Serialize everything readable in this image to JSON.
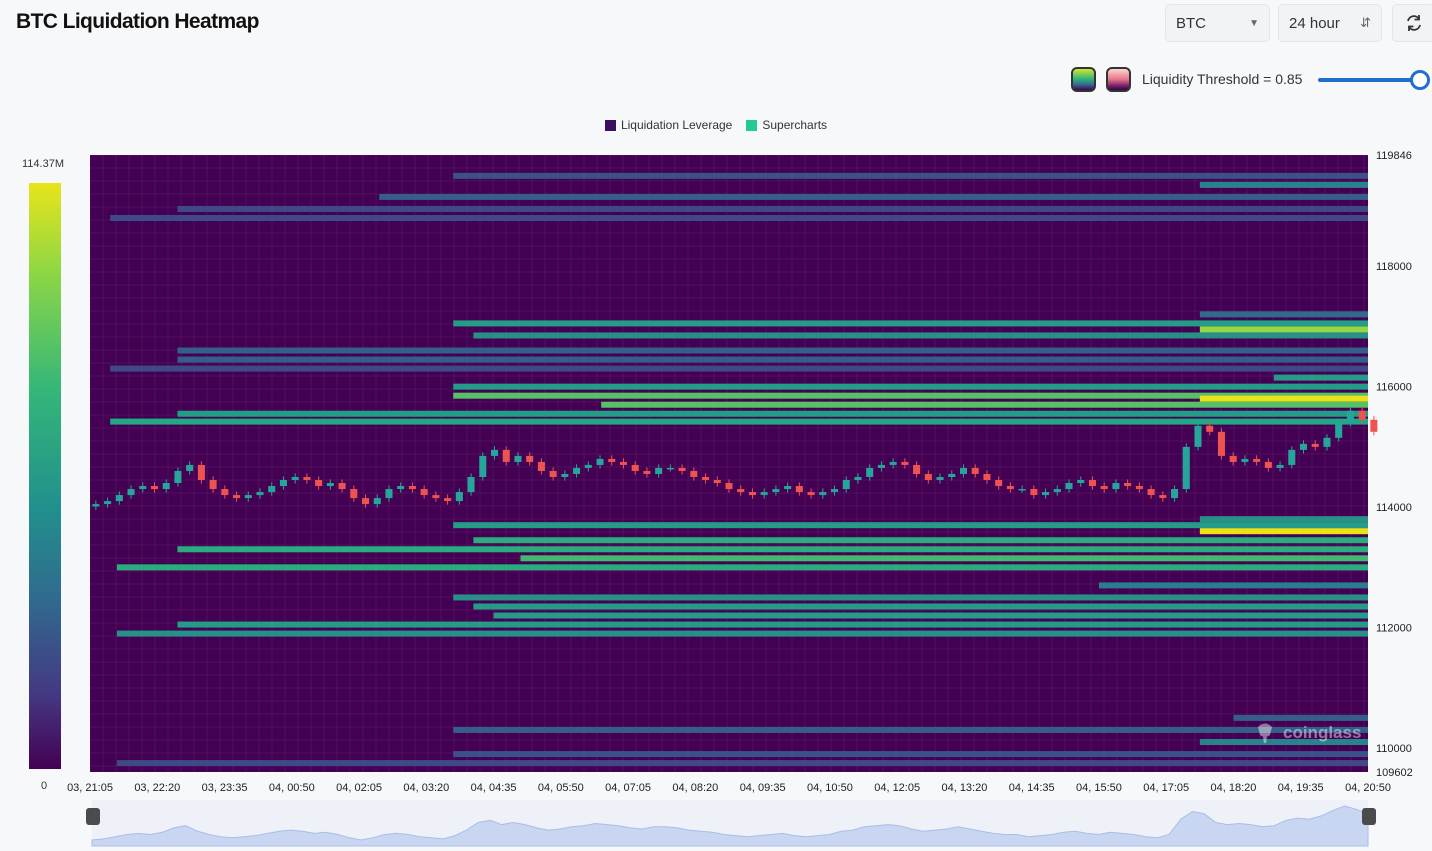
{
  "header": {
    "title": "BTC Liquidation Heatmap",
    "coin_select": "BTC",
    "range_select": "24 hour",
    "threshold_label": "Liquidity Threshold = 0.85",
    "threshold_value": 0.85
  },
  "icons": {
    "coin_chevron": "dropdown-arrow-icon",
    "range_chevron": "up-down-arrows-icon",
    "refresh": "refresh-icon",
    "watermark": "coinglass-logo-icon"
  },
  "colors": {
    "background": "#440154",
    "up_candle": "#26a69a",
    "down_candle": "#ef5350",
    "palette_high": "#e8e419",
    "accent": "#1f6fd1"
  },
  "colorbar": {
    "max_label": "114.37M",
    "min_label": "0"
  },
  "watermark": "coinglass",
  "chart_data": {
    "type": "heatmap",
    "title": "BTC Liquidation Heatmap",
    "legend": [
      {
        "name": "Liquidation Leverage",
        "color": "#3b0f5e"
      },
      {
        "name": "Supercharts",
        "color": "#22c997"
      }
    ],
    "legend_position": "top-center",
    "x_ticks": [
      "03, 21:05",
      "03, 22:20",
      "03, 23:35",
      "04, 00:50",
      "04, 02:05",
      "04, 03:20",
      "04, 04:35",
      "04, 05:50",
      "04, 07:05",
      "04, 08:20",
      "04, 09:35",
      "04, 10:50",
      "04, 12:05",
      "04, 13:20",
      "04, 14:35",
      "04, 15:50",
      "04, 17:05",
      "04, 18:20",
      "04, 19:35",
      "04, 20:50"
    ],
    "y_ticks": [
      119846,
      118000,
      116000,
      114000,
      112000,
      110000,
      109602
    ],
    "y_range": [
      109602,
      119846
    ],
    "x_range_intervals": 19,
    "grid": true,
    "value_range": [
      0,
      114.37
    ],
    "value_unit": "M",
    "bands": [
      {
        "price": 119500,
        "start": 5.4,
        "intensity": 0.25
      },
      {
        "price": 119350,
        "start": 16.5,
        "intensity": 0.45
      },
      {
        "price": 119150,
        "start": 4.3,
        "intensity": 0.3
      },
      {
        "price": 118950,
        "start": 1.3,
        "intensity": 0.22
      },
      {
        "price": 118800,
        "start": 0.3,
        "intensity": 0.22
      },
      {
        "price": 117200,
        "start": 16.5,
        "intensity": 0.35
      },
      {
        "price": 117050,
        "start": 5.4,
        "intensity": 0.55
      },
      {
        "price": 116950,
        "start": 16.5,
        "intensity": 0.85
      },
      {
        "price": 116850,
        "start": 5.7,
        "intensity": 0.5
      },
      {
        "price": 116600,
        "start": 1.3,
        "intensity": 0.3
      },
      {
        "price": 116450,
        "start": 1.3,
        "intensity": 0.3
      },
      {
        "price": 116300,
        "start": 0.3,
        "intensity": 0.22
      },
      {
        "price": 116150,
        "start": 17.6,
        "intensity": 0.55
      },
      {
        "price": 116000,
        "start": 5.4,
        "intensity": 0.55
      },
      {
        "price": 115850,
        "start": 5.4,
        "intensity": 0.72
      },
      {
        "price": 115800,
        "start": 16.5,
        "intensity": 1.0
      },
      {
        "price": 115700,
        "start": 7.6,
        "intensity": 0.72
      },
      {
        "price": 115550,
        "start": 1.3,
        "intensity": 0.55
      },
      {
        "price": 115420,
        "start": 0.3,
        "intensity": 0.6
      },
      {
        "price": 114150,
        "start": 19.4,
        "intensity": 0.45
      },
      {
        "price": 113800,
        "start": 16.5,
        "intensity": 0.5
      },
      {
        "price": 113700,
        "start": 5.4,
        "intensity": 0.55
      },
      {
        "price": 113600,
        "start": 16.5,
        "intensity": 1.0
      },
      {
        "price": 113450,
        "start": 5.7,
        "intensity": 0.62
      },
      {
        "price": 113300,
        "start": 1.3,
        "intensity": 0.62
      },
      {
        "price": 113150,
        "start": 6.4,
        "intensity": 0.68
      },
      {
        "price": 113000,
        "start": 0.4,
        "intensity": 0.62
      },
      {
        "price": 112700,
        "start": 15.0,
        "intensity": 0.42
      },
      {
        "price": 112500,
        "start": 5.4,
        "intensity": 0.5
      },
      {
        "price": 112350,
        "start": 5.7,
        "intensity": 0.55
      },
      {
        "price": 112200,
        "start": 6.0,
        "intensity": 0.55
      },
      {
        "price": 112050,
        "start": 1.3,
        "intensity": 0.55
      },
      {
        "price": 111900,
        "start": 0.4,
        "intensity": 0.5
      },
      {
        "price": 110500,
        "start": 17.0,
        "intensity": 0.3
      },
      {
        "price": 110300,
        "start": 5.4,
        "intensity": 0.3
      },
      {
        "price": 110100,
        "start": 16.5,
        "intensity": 0.45
      },
      {
        "price": 109900,
        "start": 5.4,
        "intensity": 0.25
      },
      {
        "price": 109750,
        "start": 0.4,
        "intensity": 0.22
      }
    ],
    "price_series": {
      "x_start": 0,
      "x_end": 19,
      "close": [
        114050,
        114100,
        114200,
        114300,
        114350,
        114300,
        114400,
        114600,
        114700,
        114450,
        114300,
        114200,
        114150,
        114200,
        114250,
        114350,
        114450,
        114500,
        114450,
        114350,
        114400,
        114300,
        114150,
        114050,
        114150,
        114300,
        114350,
        114300,
        114200,
        114150,
        114100,
        114250,
        114500,
        114850,
        114950,
        114750,
        114850,
        114750,
        114600,
        114500,
        114550,
        114650,
        114700,
        114800,
        114750,
        114700,
        114600,
        114550,
        114650,
        114650,
        114600,
        114500,
        114450,
        114400,
        114300,
        114250,
        114200,
        114250,
        114300,
        114350,
        114250,
        114200,
        114250,
        114300,
        114450,
        114500,
        114650,
        114700,
        114750,
        114700,
        114550,
        114450,
        114500,
        114550,
        114650,
        114550,
        114450,
        114350,
        114300,
        114300,
        114200,
        114250,
        114300,
        114400,
        114450,
        114350,
        114300,
        114400,
        114350,
        114300,
        114200,
        114150,
        114300,
        115000,
        115350,
        115250,
        114850,
        114750,
        114800,
        114750,
        114650,
        114700,
        114950,
        115050,
        115000,
        115150,
        115400,
        115600,
        115450,
        115250
      ]
    }
  }
}
